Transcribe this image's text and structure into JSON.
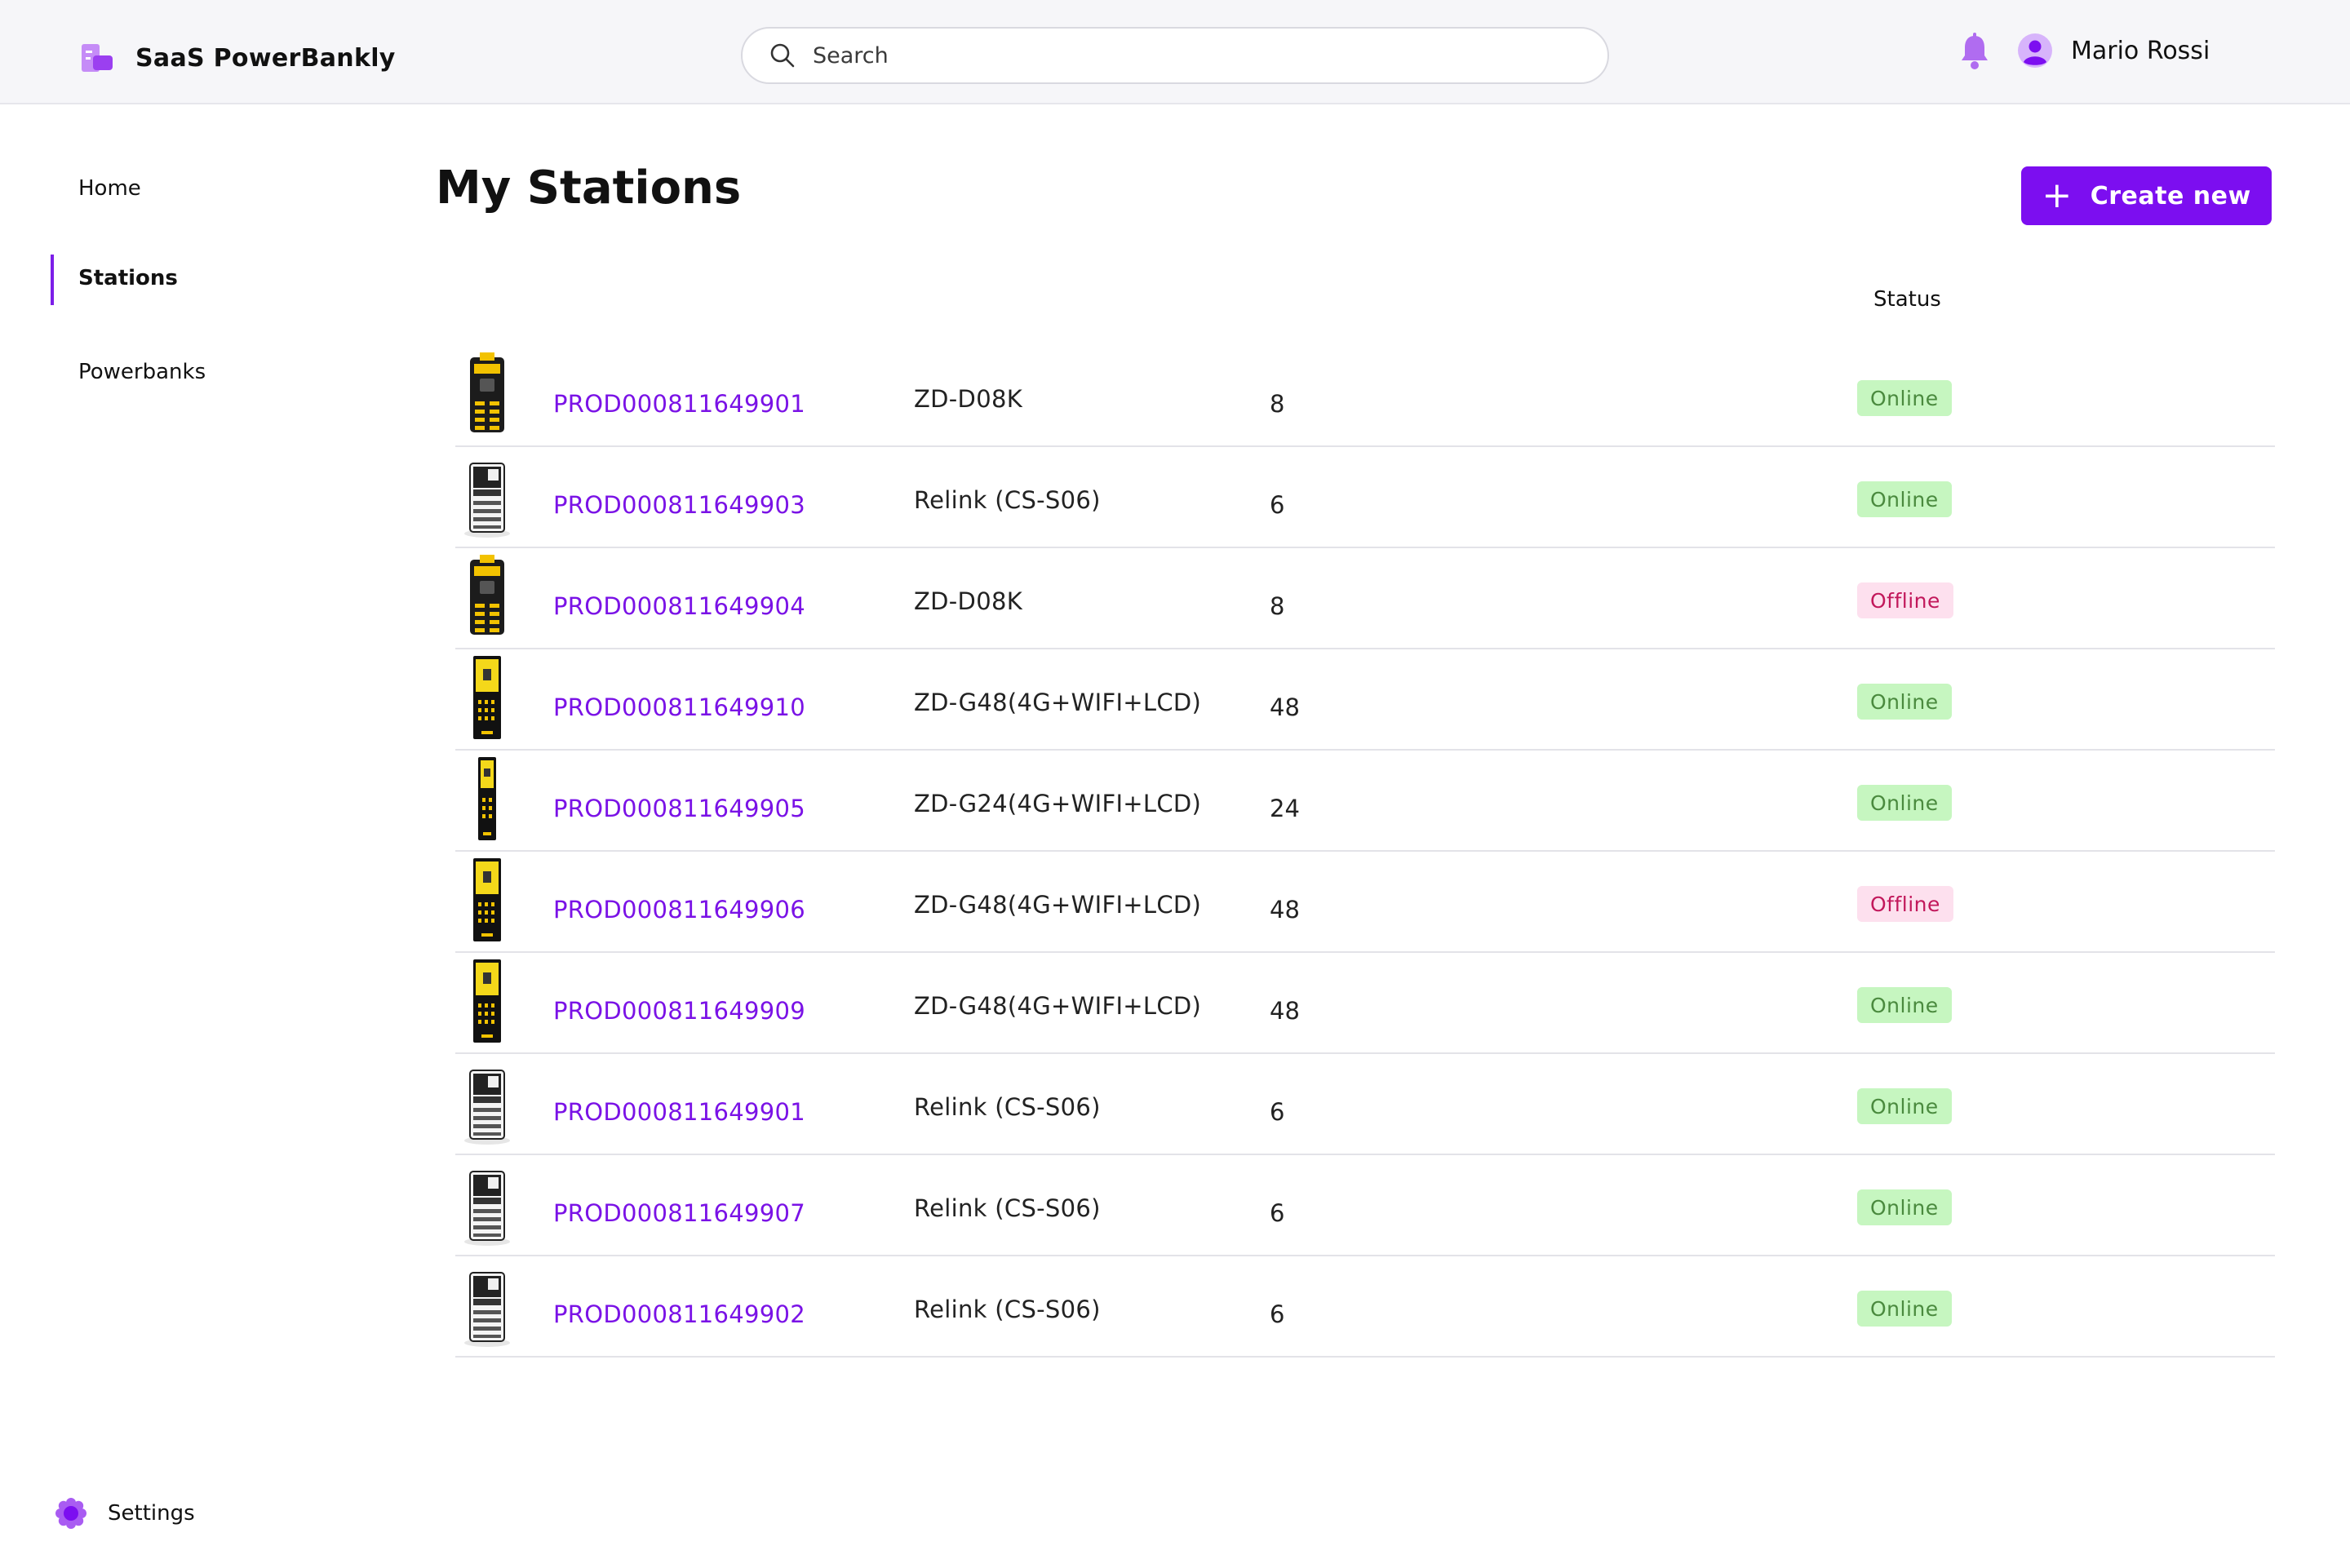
{
  "app": {
    "name": "SaaS PowerBankly"
  },
  "search": {
    "placeholder": "Search"
  },
  "user": {
    "name": "Mario Rossi"
  },
  "sidebar": {
    "items": [
      {
        "label": "Home"
      },
      {
        "label": "Stations"
      },
      {
        "label": "Powerbanks"
      }
    ],
    "settings_label": "Settings"
  },
  "main": {
    "title": "My Stations",
    "create_label": "Create new",
    "columns": {
      "status": "Status"
    },
    "rows": [
      {
        "id": "PROD000811649901",
        "model": "ZD-D08K",
        "slots": "8",
        "status": "Online",
        "thumb": "station-d08k"
      },
      {
        "id": "PROD000811649903",
        "model": "Relink (CS-S06)",
        "slots": "6",
        "status": "Online",
        "thumb": "station-relink"
      },
      {
        "id": "PROD000811649904",
        "model": "ZD-D08K",
        "slots": "8",
        "status": "Offline",
        "thumb": "station-d08k"
      },
      {
        "id": "PROD000811649910",
        "model": "ZD-G48(4G+WIFI+LCD)",
        "slots": "48",
        "status": "Online",
        "thumb": "station-g48"
      },
      {
        "id": "PROD000811649905",
        "model": "ZD-G24(4G+WIFI+LCD)",
        "slots": "24",
        "status": "Online",
        "thumb": "station-g24"
      },
      {
        "id": "PROD000811649906",
        "model": "ZD-G48(4G+WIFI+LCD)",
        "slots": "48",
        "status": "Offline",
        "thumb": "station-g48"
      },
      {
        "id": "PROD000811649909",
        "model": "ZD-G48(4G+WIFI+LCD)",
        "slots": "48",
        "status": "Online",
        "thumb": "station-g48"
      },
      {
        "id": "PROD000811649901",
        "model": "Relink (CS-S06)",
        "slots": "6",
        "status": "Online",
        "thumb": "station-relink"
      },
      {
        "id": "PROD000811649907",
        "model": "Relink (CS-S06)",
        "slots": "6",
        "status": "Online",
        "thumb": "station-relink"
      },
      {
        "id": "PROD000811649902",
        "model": "Relink (CS-S06)",
        "slots": "6",
        "status": "Online",
        "thumb": "station-relink"
      }
    ]
  },
  "colors": {
    "accent": "#7c0ef0",
    "online_bg": "#c6f6c0",
    "online_text": "#4a8a3e",
    "offline_bg": "#fde0ee",
    "offline_text": "#c2185b"
  }
}
